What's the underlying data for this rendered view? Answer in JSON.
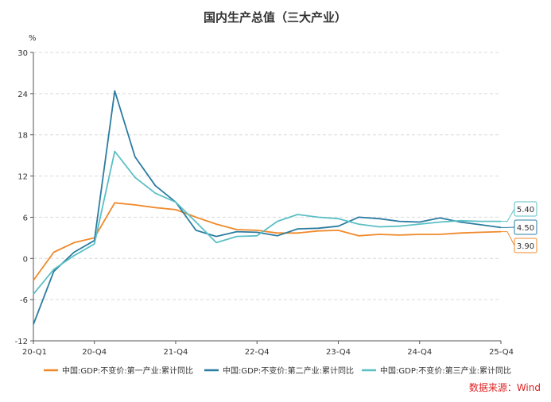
{
  "chart_data": {
    "type": "line",
    "title": "国内生产总值（三大产业）",
    "ylabel": "%",
    "ylim": [
      -12,
      30
    ],
    "yticks": [
      "30",
      "24",
      "18",
      "12",
      "6",
      "0",
      "-6",
      "-12"
    ],
    "xtick_labels": [
      "20-Q1",
      "20-Q4",
      "21-Q4",
      "22-Q4",
      "23-Q4",
      "24-Q4",
      "25-Q4"
    ],
    "x": [
      "20-Q1",
      "20-Q2",
      "20-Q3",
      "20-Q4",
      "21-Q1",
      "21-Q2",
      "21-Q3",
      "21-Q4",
      "22-Q1",
      "22-Q2",
      "22-Q3",
      "22-Q4",
      "23-Q1",
      "23-Q2",
      "23-Q3",
      "23-Q4",
      "24-Q1",
      "24-Q2",
      "24-Q3",
      "24-Q4",
      "25-Q1",
      "25-Q2",
      "25-Q3",
      "25-Q4"
    ],
    "series": [
      {
        "name": "中国:GDP:不变价:第一产业:累计同比",
        "color": "#f0892a",
        "values": [
          -3.2,
          0.9,
          2.3,
          3.0,
          8.1,
          7.8,
          7.4,
          7.1,
          6.0,
          5.0,
          4.2,
          4.1,
          3.7,
          3.7,
          4.0,
          4.1,
          3.3,
          3.5,
          3.4,
          3.5,
          3.5,
          3.7,
          3.8,
          3.9
        ],
        "end_label": "3.90"
      },
      {
        "name": "中国:GDP:不变价:第二产业:累计同比",
        "color": "#2b7ca0",
        "values": [
          -9.6,
          -1.9,
          0.9,
          2.6,
          24.4,
          14.8,
          10.6,
          8.2,
          4.1,
          3.2,
          3.9,
          3.8,
          3.3,
          4.3,
          4.4,
          4.7,
          6.0,
          5.8,
          5.4,
          5.3,
          5.9,
          5.3,
          4.9,
          4.5
        ],
        "end_label": "4.50"
      },
      {
        "name": "中国:GDP:不变价:第三产业:累计同比",
        "color": "#5bbfc4",
        "values": [
          -5.2,
          -1.6,
          0.4,
          2.1,
          15.6,
          11.8,
          9.5,
          8.2,
          5.3,
          2.3,
          3.2,
          3.3,
          5.4,
          6.4,
          6.0,
          5.8,
          5.0,
          4.6,
          4.7,
          5.0,
          5.3,
          5.5,
          5.4,
          5.4
        ],
        "end_label": "5.40"
      }
    ],
    "grid": true,
    "legend_position": "bottom"
  },
  "source_text": "数据来源：Wind"
}
